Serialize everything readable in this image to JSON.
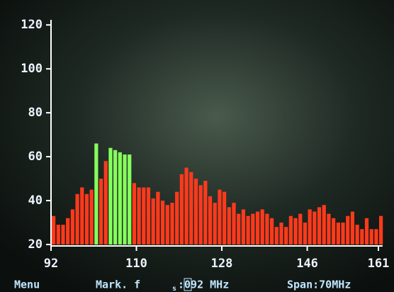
{
  "chart_data": {
    "type": "bar",
    "x": [
      92,
      93,
      94,
      95,
      96,
      97,
      98,
      99,
      100,
      101,
      102,
      103,
      104,
      105,
      106,
      107,
      108,
      109,
      110,
      111,
      112,
      113,
      114,
      115,
      116,
      117,
      118,
      119,
      120,
      121,
      122,
      123,
      124,
      125,
      126,
      127,
      128,
      129,
      130,
      131,
      132,
      133,
      134,
      135,
      136,
      137,
      138,
      139,
      140,
      141,
      142,
      143,
      144,
      145,
      146,
      147,
      148,
      149,
      150,
      151,
      152,
      153,
      154,
      155,
      156,
      157,
      158,
      159,
      160,
      161
    ],
    "values": [
      33,
      29,
      29,
      32,
      36,
      43,
      46,
      43,
      45,
      66,
      50,
      58,
      64,
      63,
      62,
      61,
      61,
      48,
      46,
      46,
      46,
      41,
      44,
      40,
      38,
      39,
      44,
      52,
      55,
      53,
      50,
      47,
      49,
      42,
      39,
      45,
      44,
      37,
      39,
      34,
      36,
      33,
      34,
      35,
      36,
      34,
      32,
      28,
      30,
      28,
      33,
      32,
      34,
      30,
      36,
      35,
      37,
      38,
      34,
      32,
      30,
      30,
      33,
      35,
      29,
      27,
      32,
      27,
      27,
      33
    ],
    "colors": [
      "#ff3a1c",
      "#ff3a1c",
      "#ff3a1c",
      "#ff3a1c",
      "#ff3a1c",
      "#ff3a1c",
      "#ff3a1c",
      "#ff3a1c",
      "#ff3a1c",
      "#86ff5c",
      "#ff3a1c",
      "#ff3a1c",
      "#86ff5c",
      "#86ff5c",
      "#86ff5c",
      "#86ff5c",
      "#86ff5c",
      "#ff3a1c",
      "#ff3a1c",
      "#ff3a1c",
      "#ff3a1c",
      "#ff3a1c",
      "#ff3a1c",
      "#ff3a1c",
      "#ff3a1c",
      "#ff3a1c",
      "#ff3a1c",
      "#ff3a1c",
      "#ff3a1c",
      "#ff3a1c",
      "#ff3a1c",
      "#ff3a1c",
      "#ff3a1c",
      "#ff3a1c",
      "#ff3a1c",
      "#ff3a1c",
      "#ff3a1c",
      "#ff3a1c",
      "#ff3a1c",
      "#ff3a1c",
      "#ff3a1c",
      "#ff3a1c",
      "#ff3a1c",
      "#ff3a1c",
      "#ff3a1c",
      "#ff3a1c",
      "#ff3a1c",
      "#ff3a1c",
      "#ff3a1c",
      "#ff3a1c",
      "#ff3a1c",
      "#ff3a1c",
      "#ff3a1c",
      "#ff3a1c",
      "#ff3a1c",
      "#ff3a1c",
      "#ff3a1c",
      "#ff3a1c",
      "#ff3a1c",
      "#ff3a1c",
      "#ff3a1c",
      "#ff3a1c",
      "#ff3a1c",
      "#ff3a1c",
      "#ff3a1c",
      "#ff3a1c",
      "#ff3a1c",
      "#ff3a1c",
      "#ff3a1c",
      "#ff3a1c"
    ],
    "xlim": [
      92,
      161
    ],
    "xticks": [
      92,
      110,
      128,
      146,
      161
    ],
    "ylim": [
      20,
      122
    ],
    "yticks": [
      20,
      40,
      60,
      80,
      100,
      120
    ],
    "footer": {
      "menu": "Menu",
      "marker": "Mark. f",
      "marker_sub": "s",
      "marker_value": ":092 MHz",
      "span": "Span:70MHz"
    }
  }
}
